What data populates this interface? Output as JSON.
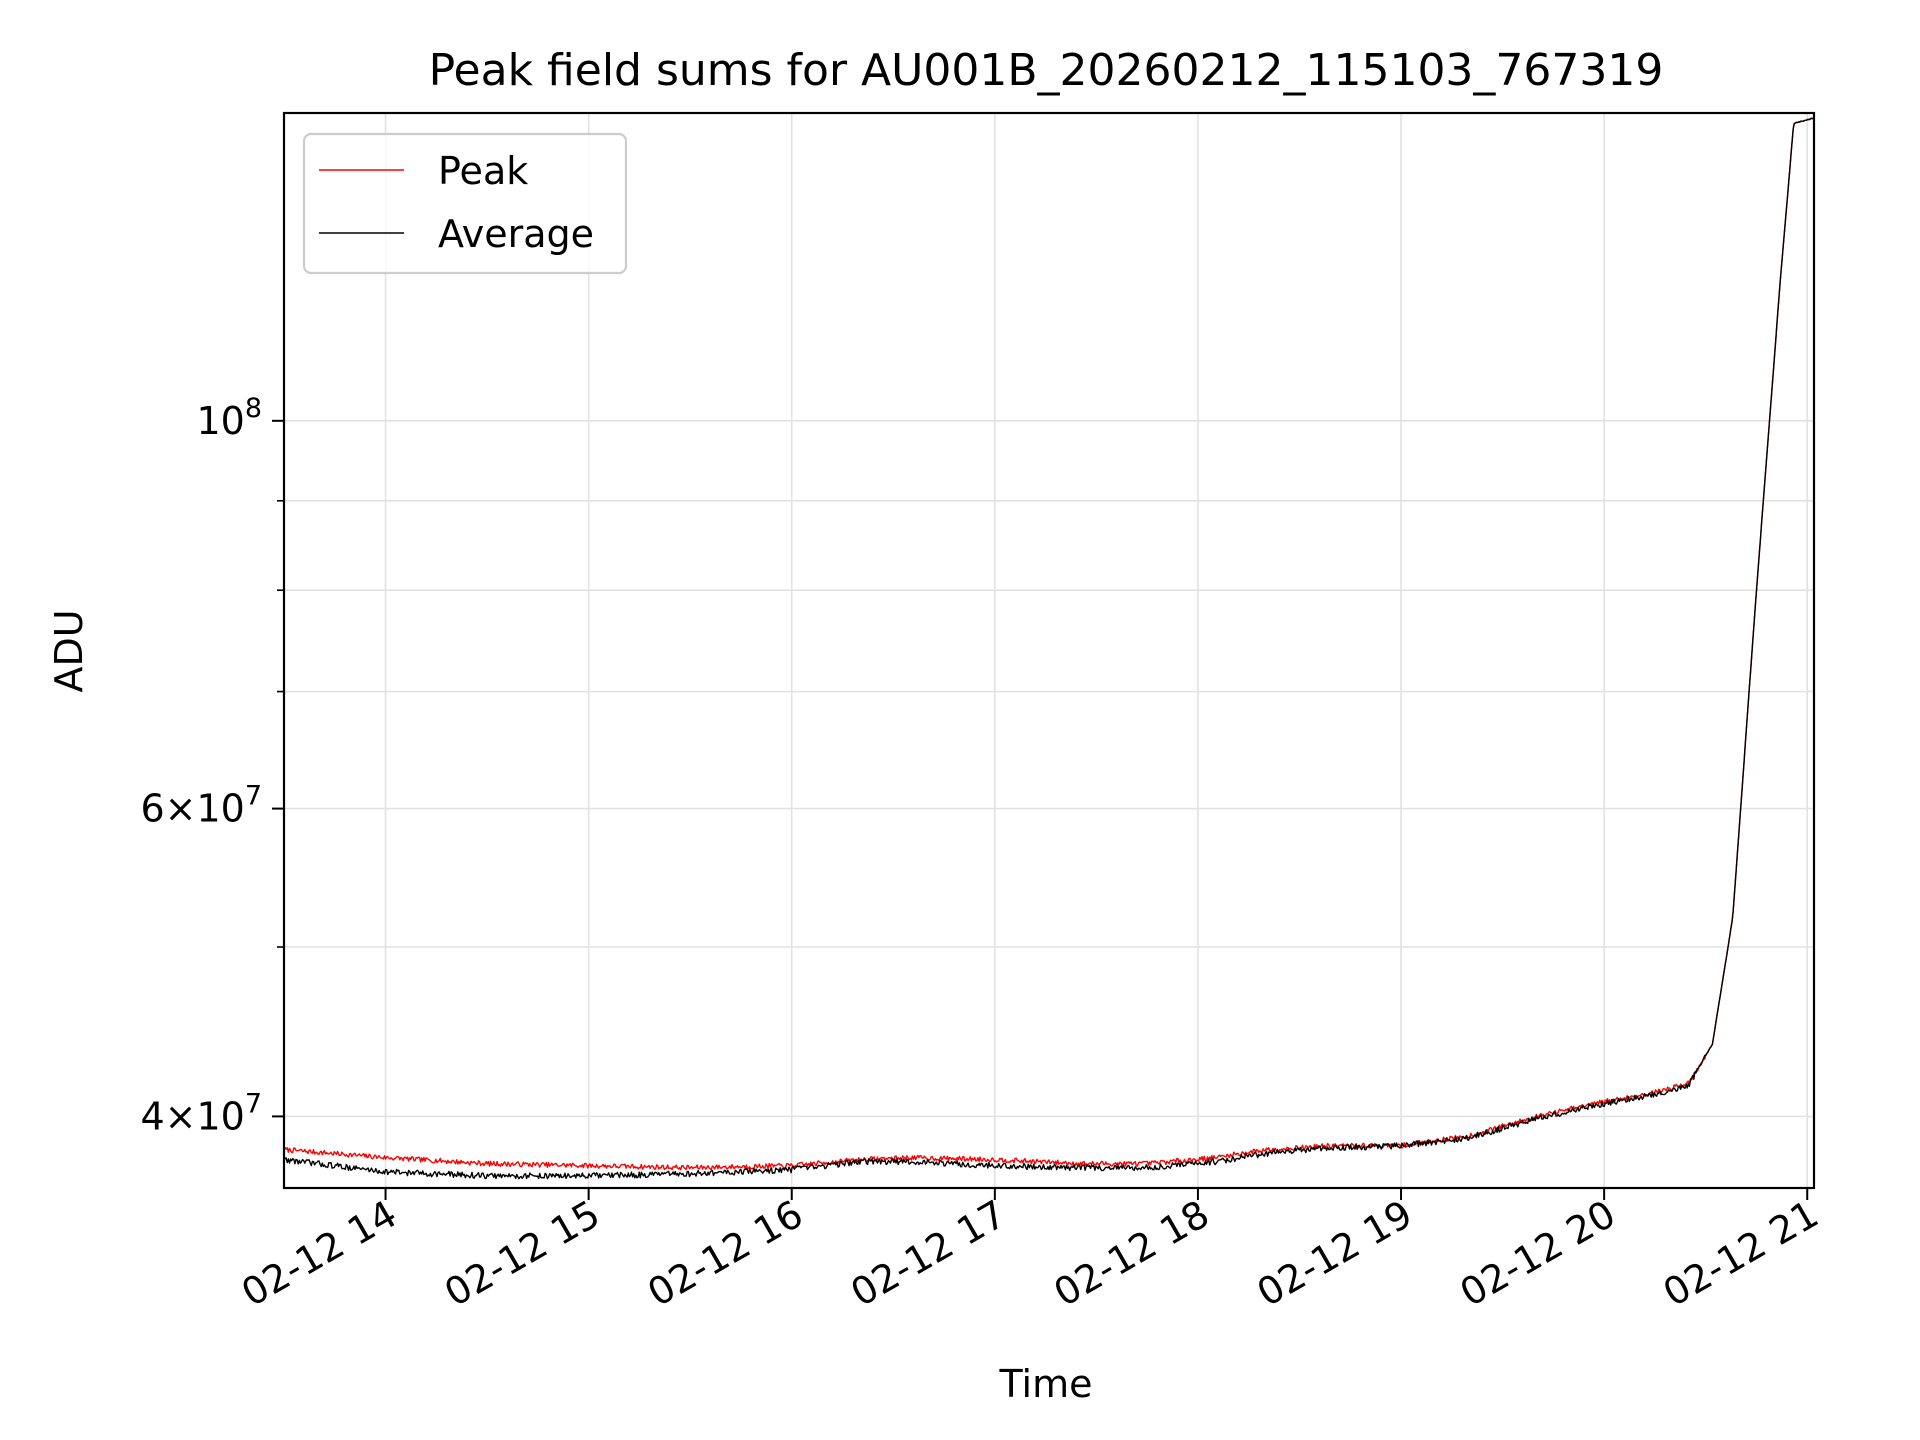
{
  "chart_data": {
    "type": "line",
    "title": "Peak field sums for AU001B_20260212_115103_767319",
    "xlabel": "Time",
    "ylabel": "ADU",
    "yscale": "log",
    "xlim": [
      "2026-02-12T13:30",
      "2026-02-12T21:02"
    ],
    "ylim": [
      36400000,
      150000000
    ],
    "x_ticks": [
      "2026-02-12T14:00",
      "2026-02-12T15:00",
      "2026-02-12T16:00",
      "2026-02-12T17:00",
      "2026-02-12T18:00",
      "2026-02-12T19:00",
      "2026-02-12T20:00",
      "2026-02-12T21:00"
    ],
    "x_tick_labels": [
      "02-12 14",
      "02-12 15",
      "02-12 16",
      "02-12 17",
      "02-12 18",
      "02-12 19",
      "02-12 20",
      "02-12 21"
    ],
    "y_major_ticks": [
      {
        "value": 40000000,
        "mantissa": "4",
        "exponent": "7"
      },
      {
        "value": 60000000,
        "mantissa": "6",
        "exponent": "7"
      },
      {
        "value": 100000000,
        "mantissa": "",
        "exponent": "8"
      }
    ],
    "y_minor_ticks": [
      50000000,
      70000000,
      80000000,
      90000000
    ],
    "grid": true,
    "legend_position": "top-left",
    "series": [
      {
        "name": "Peak",
        "color": "#ff0000",
        "x": [
          "2026-02-12T13:30",
          "2026-02-12T14:00",
          "2026-02-12T14:30",
          "2026-02-12T15:00",
          "2026-02-12T15:30",
          "2026-02-12T16:00",
          "2026-02-12T16:20",
          "2026-02-12T16:35",
          "2026-02-12T17:00",
          "2026-02-12T17:25",
          "2026-02-12T17:45",
          "2026-02-12T18:05",
          "2026-02-12T18:20",
          "2026-02-12T18:40",
          "2026-02-12T19:00",
          "2026-02-12T19:20",
          "2026-02-12T19:40",
          "2026-02-12T20:00",
          "2026-02-12T20:15",
          "2026-02-12T20:25",
          "2026-02-12T20:32",
          "2026-02-12T20:38",
          "2026-02-12T20:45",
          "2026-02-12T20:52",
          "2026-02-12T20:56",
          "2026-02-12T21:02"
        ],
        "values": [
          38300000,
          37900000,
          37600000,
          37500000,
          37400000,
          37500000,
          37800000,
          37900000,
          37800000,
          37600000,
          37600000,
          37900000,
          38300000,
          38500000,
          38500000,
          39000000,
          40000000,
          40800000,
          41300000,
          41800000,
          44000000,
          52000000,
          80000000,
          120000000,
          148000000,
          149000000
        ]
      },
      {
        "name": "Average",
        "color": "#000000",
        "x": [
          "2026-02-12T13:30",
          "2026-02-12T14:00",
          "2026-02-12T14:30",
          "2026-02-12T15:00",
          "2026-02-12T15:30",
          "2026-02-12T16:00",
          "2026-02-12T16:20",
          "2026-02-12T16:35",
          "2026-02-12T17:00",
          "2026-02-12T17:25",
          "2026-02-12T17:45",
          "2026-02-12T18:05",
          "2026-02-12T18:20",
          "2026-02-12T18:40",
          "2026-02-12T19:00",
          "2026-02-12T19:20",
          "2026-02-12T19:40",
          "2026-02-12T20:00",
          "2026-02-12T20:15",
          "2026-02-12T20:25",
          "2026-02-12T20:32",
          "2026-02-12T20:38",
          "2026-02-12T20:45",
          "2026-02-12T20:52",
          "2026-02-12T20:56",
          "2026-02-12T21:02"
        ],
        "values": [
          37800000,
          37200000,
          37000000,
          37000000,
          37100000,
          37300000,
          37700000,
          37700000,
          37500000,
          37400000,
          37400000,
          37700000,
          38100000,
          38400000,
          38500000,
          38900000,
          39900000,
          40700000,
          41200000,
          41700000,
          44000000,
          52000000,
          80000000,
          120000000,
          148000000,
          149000000
        ]
      }
    ]
  }
}
